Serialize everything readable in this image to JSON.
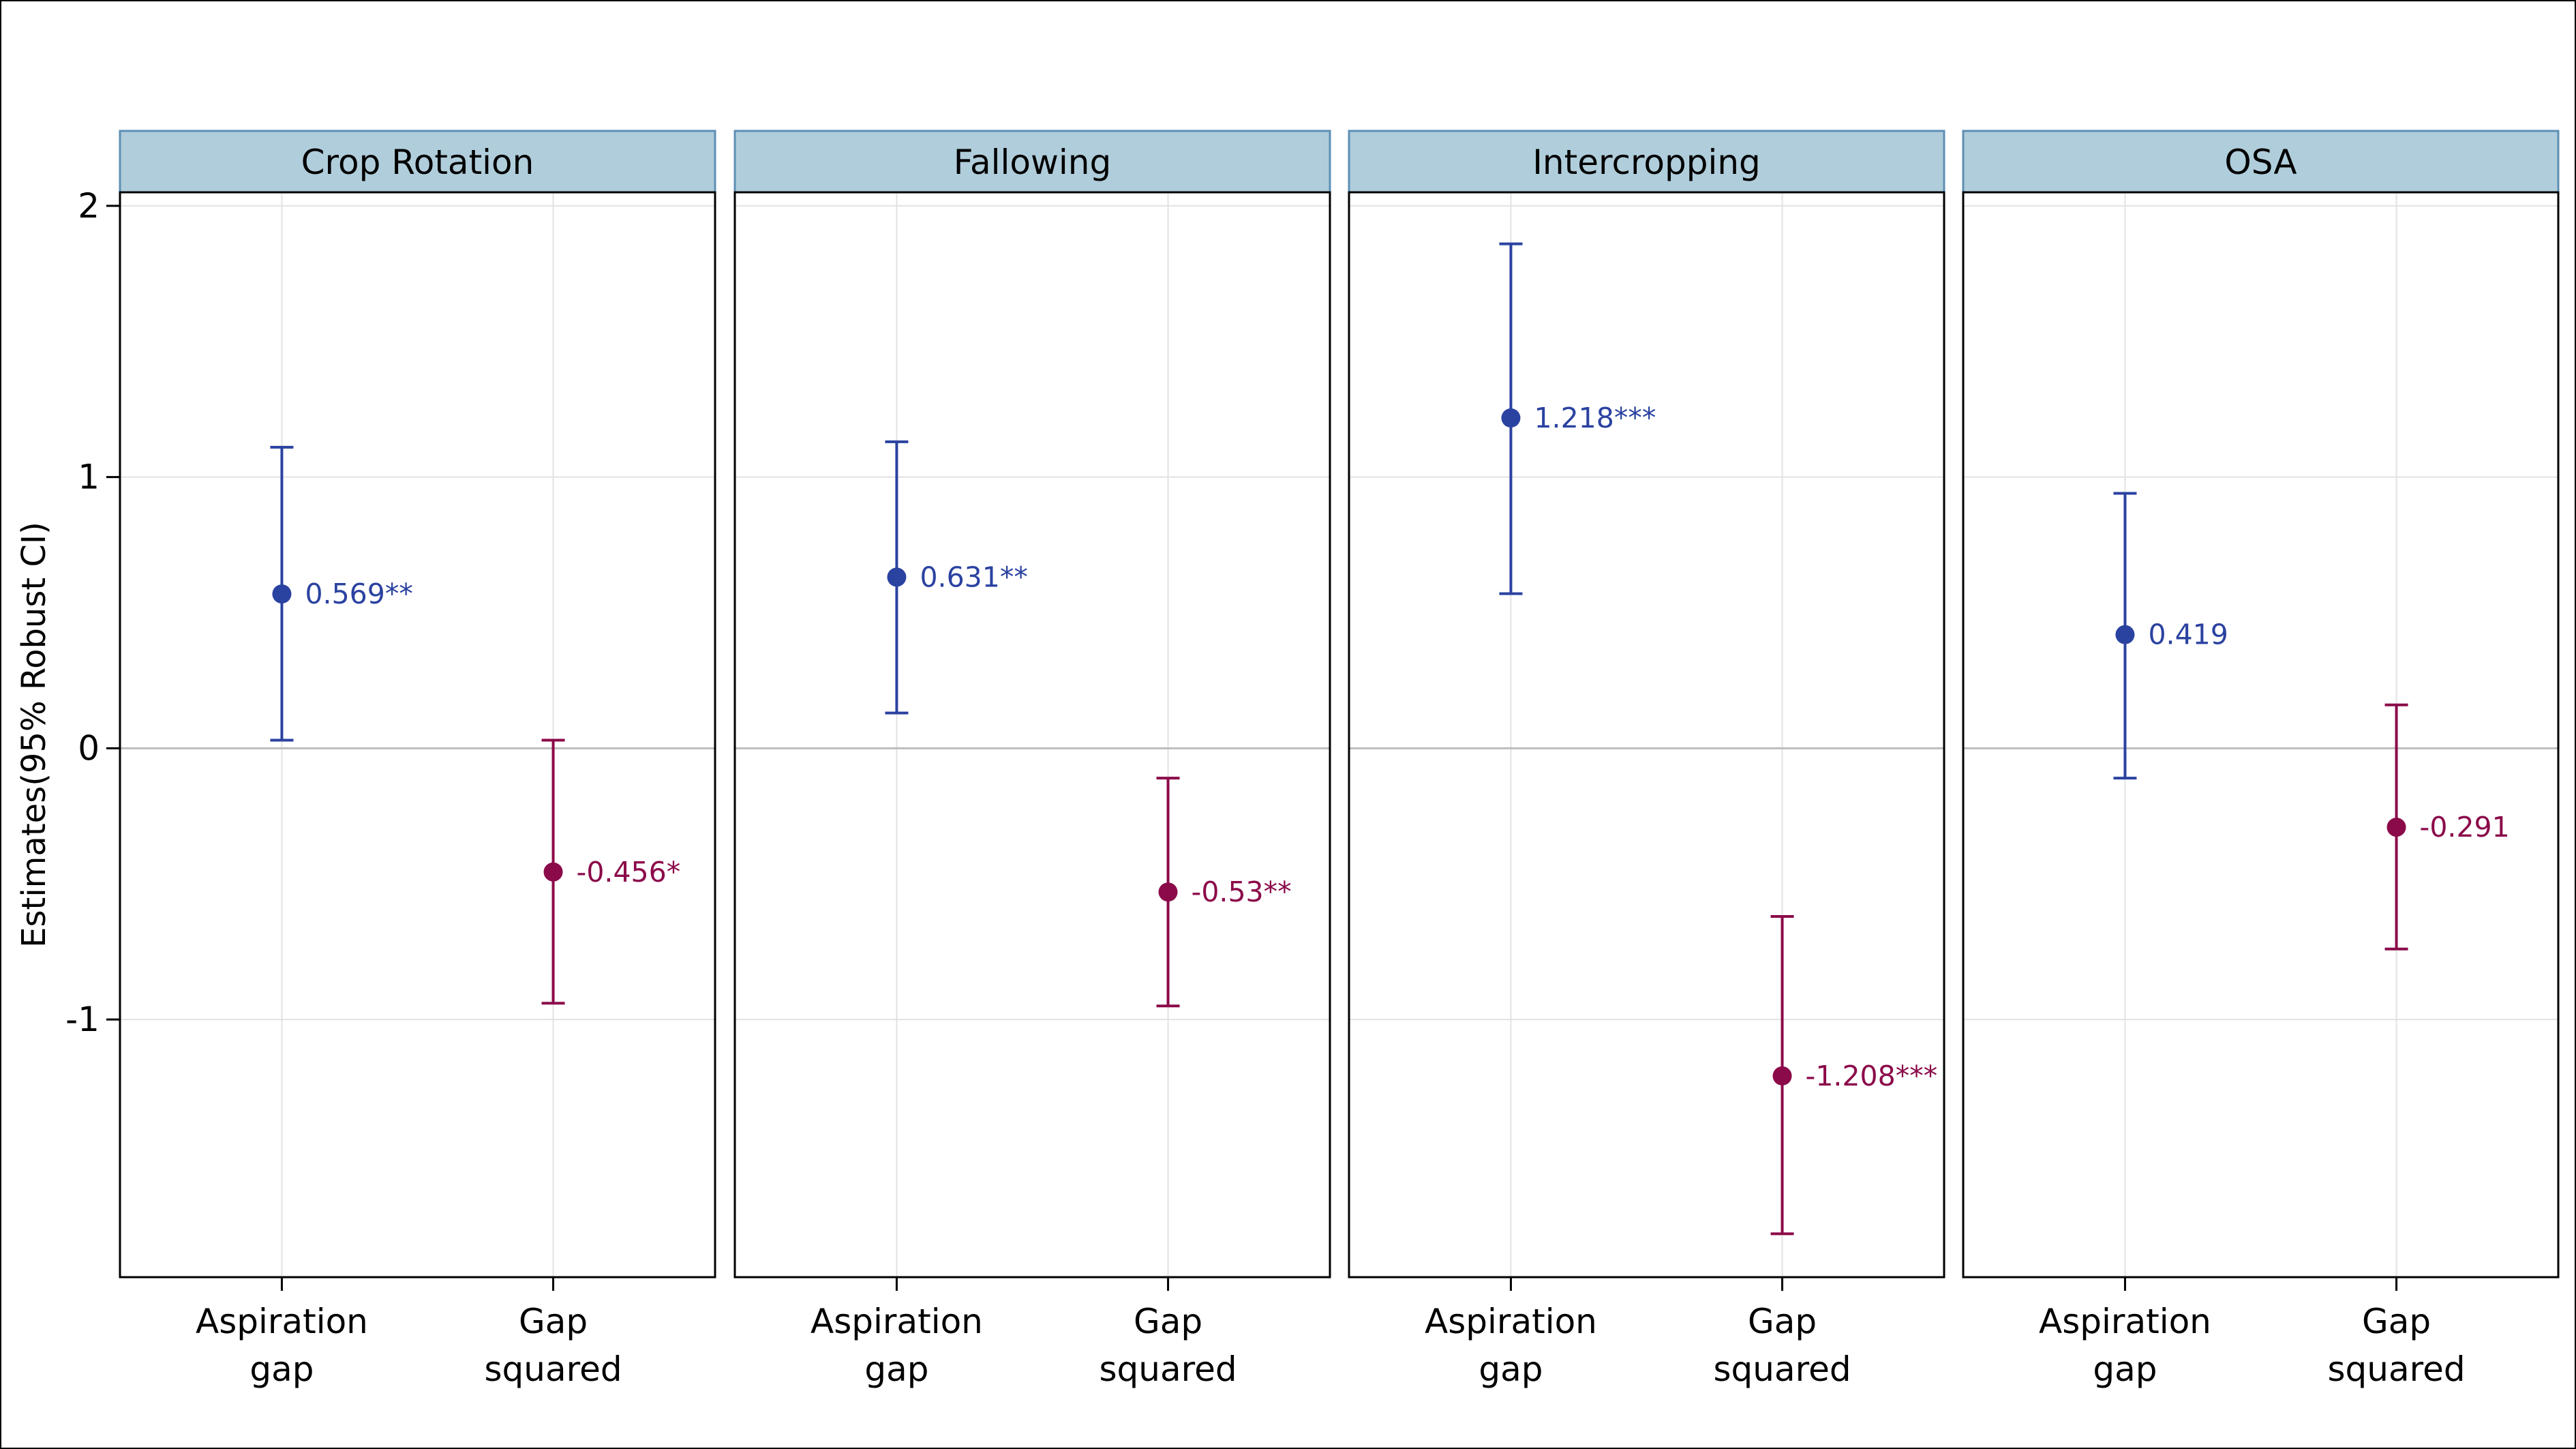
{
  "chart_data": {
    "type": "errorbar",
    "ylabel": "Estimates(95% Robust CI)",
    "ylim": [
      -1.95,
      2.05
    ],
    "yticks": [
      2,
      1,
      0,
      -1
    ],
    "yticklabels": [
      "2",
      "1",
      "0",
      "-1"
    ],
    "categories": [
      [
        "Aspiration",
        "gap"
      ],
      [
        "Gap",
        "squared"
      ]
    ],
    "colors": {
      "aspiration_gap": "#2a42a0",
      "gap_squared": "#8b0a4a",
      "strip_fill": "#b0cddb",
      "strip_border": "#5d8fb4",
      "zero_line": "#bdbdbd",
      "grid": "#e2e2e2"
    },
    "grid": true,
    "panels": [
      {
        "title": "Crop Rotation",
        "points": [
          {
            "category": "Aspiration gap",
            "estimate": 0.569,
            "ci_low": 0.03,
            "ci_high": 1.11,
            "label": "0.569**"
          },
          {
            "category": "Gap squared",
            "estimate": -0.456,
            "ci_low": -0.94,
            "ci_high": 0.03,
            "label": "-0.456*"
          }
        ]
      },
      {
        "title": "Fallowing",
        "points": [
          {
            "category": "Aspiration gap",
            "estimate": 0.631,
            "ci_low": 0.13,
            "ci_high": 1.13,
            "label": "0.631**"
          },
          {
            "category": "Gap squared",
            "estimate": -0.53,
            "ci_low": -0.95,
            "ci_high": -0.11,
            "label": "-0.53**"
          }
        ]
      },
      {
        "title": "Intercropping",
        "points": [
          {
            "category": "Aspiration gap",
            "estimate": 1.218,
            "ci_low": 0.57,
            "ci_high": 1.86,
            "label": "1.218***"
          },
          {
            "category": "Gap squared",
            "estimate": -1.208,
            "ci_low": -1.79,
            "ci_high": -0.62,
            "label": "-1.208***"
          }
        ]
      },
      {
        "title": "OSA",
        "points": [
          {
            "category": "Aspiration gap",
            "estimate": 0.419,
            "ci_low": -0.11,
            "ci_high": 0.94,
            "label": "0.419"
          },
          {
            "category": "Gap squared",
            "estimate": -0.291,
            "ci_low": -0.74,
            "ci_high": 0.16,
            "label": "-0.291"
          }
        ]
      }
    ]
  }
}
